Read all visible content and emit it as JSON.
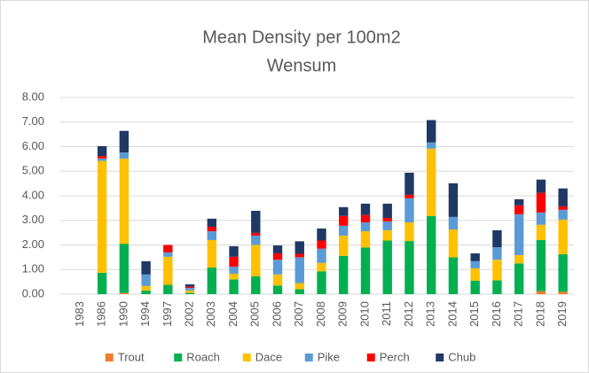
{
  "chart_data": {
    "type": "bar",
    "stacked": true,
    "title": "Mean Density per 100m2",
    "subtitle": "Wensum",
    "categories": [
      "1983",
      "1986",
      "1990",
      "1994",
      "1997",
      "2002",
      "2003",
      "2004",
      "2005",
      "2006",
      "2007",
      "2008",
      "2009",
      "2010",
      "2011",
      "2012",
      "2013",
      "2014",
      "2015",
      "2016",
      "2017",
      "2018",
      "2019"
    ],
    "series": [
      {
        "name": "Trout",
        "color": "#ed7d31",
        "values": [
          0,
          0,
          0.05,
          0,
          0,
          0,
          0,
          0,
          0,
          0,
          0,
          0,
          0,
          0,
          0,
          0,
          0,
          0,
          0,
          0,
          0,
          0.12,
          0.1
        ]
      },
      {
        "name": "Roach",
        "color": "#00b050",
        "values": [
          0,
          0.87,
          2.0,
          0.15,
          0.38,
          0.05,
          1.08,
          0.6,
          0.72,
          0.35,
          0.2,
          0.93,
          1.56,
          1.9,
          2.18,
          2.16,
          3.18,
          1.5,
          0.55,
          0.56,
          1.25,
          2.08,
          1.52
        ]
      },
      {
        "name": "Dace",
        "color": "#ffc000",
        "values": [
          0,
          4.55,
          3.46,
          0.18,
          1.14,
          0.1,
          1.12,
          0.23,
          1.28,
          0.45,
          0.25,
          0.34,
          0.82,
          0.66,
          0.42,
          0.76,
          2.74,
          1.13,
          0.5,
          0.84,
          0.34,
          0.62,
          1.41
        ]
      },
      {
        "name": "Pike",
        "color": "#5b9bd5",
        "values": [
          0,
          0.1,
          0.25,
          0.47,
          0.18,
          0.1,
          0.36,
          0.29,
          0.38,
          0.6,
          1.05,
          0.58,
          0.4,
          0.36,
          0.36,
          0.98,
          0.25,
          0.51,
          0.29,
          0.51,
          1.66,
          0.5,
          0.4
        ]
      },
      {
        "name": "Perch",
        "color": "#ff0000",
        "values": [
          0,
          0.1,
          0,
          0,
          0.3,
          0.05,
          0.18,
          0.4,
          0.11,
          0.26,
          0.14,
          0.33,
          0.4,
          0.3,
          0.14,
          0.14,
          0,
          0,
          0,
          0,
          0.36,
          0.8,
          0.14
        ]
      },
      {
        "name": "Chub",
        "color": "#203864",
        "values": [
          0,
          0.4,
          0.88,
          0.54,
          0,
          0.1,
          0.33,
          0.43,
          0.9,
          0.32,
          0.51,
          0.49,
          0.36,
          0.46,
          0.58,
          0.9,
          0.91,
          1.37,
          0.32,
          0.69,
          0.25,
          0.54,
          0.73
        ]
      }
    ],
    "ylim": [
      0,
      8
    ],
    "yticks": [
      {
        "value": 0,
        "label": "0.00"
      },
      {
        "value": 1,
        "label": "1.00"
      },
      {
        "value": 2,
        "label": "2.00"
      },
      {
        "value": 3,
        "label": "3.00"
      },
      {
        "value": 4,
        "label": "4.00"
      },
      {
        "value": 5,
        "label": "5.00"
      },
      {
        "value": 6,
        "label": "6.00"
      },
      {
        "value": 7,
        "label": "7.00"
      },
      {
        "value": 8,
        "label": "8.00"
      }
    ],
    "grid": true,
    "legend": "bottom"
  }
}
